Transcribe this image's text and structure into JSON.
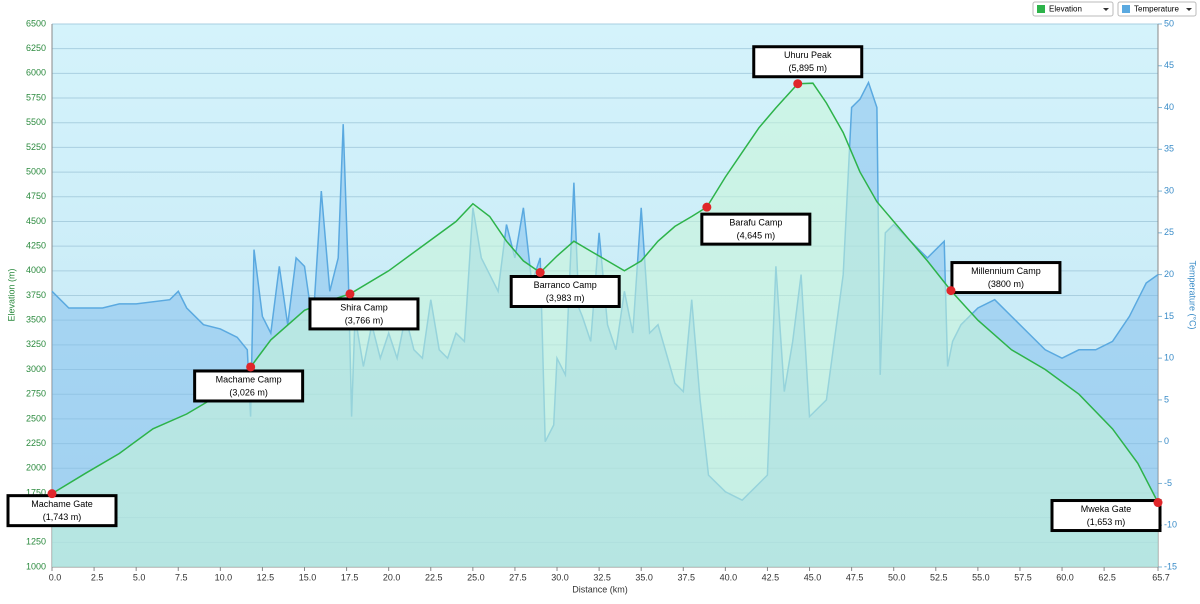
{
  "chart_data": {
    "type": "line",
    "xlabel": "Distance  (km)",
    "ylabel": "Elevation (m)",
    "y2label": "Temperature (°C)",
    "xlim": [
      0,
      65.7
    ],
    "ylim": [
      1000,
      6500
    ],
    "y2lim": [
      -15,
      50
    ],
    "grid": true,
    "legend": "top-right",
    "xticks": [
      {
        "value": 0,
        "label": "0.0"
      },
      2.5,
      {
        "value": 5,
        "label": "5.0"
      },
      7.5,
      {
        "value": 10,
        "label": "10.0"
      },
      12.5,
      {
        "value": 15,
        "label": "15.0"
      },
      17.5,
      {
        "value": 20,
        "label": "20.0"
      },
      22.5,
      {
        "value": 25,
        "label": "25.0"
      },
      27.5,
      {
        "value": 30,
        "label": "30.0"
      },
      32.5,
      {
        "value": 35,
        "label": "35.0"
      },
      37.5,
      {
        "value": 40,
        "label": "40.0"
      },
      42.5,
      {
        "value": 45,
        "label": "45.0"
      },
      47.5,
      {
        "value": 50,
        "label": "50.0"
      },
      52.5,
      {
        "value": 55,
        "label": "55.0"
      },
      57.5,
      {
        "value": 60,
        "label": "60.0"
      },
      62.5,
      65.7
    ],
    "yticks": [
      1000,
      1250,
      1500,
      1750,
      2000,
      2250,
      2500,
      2750,
      3000,
      3250,
      3500,
      3750,
      4000,
      4250,
      4500,
      4750,
      5000,
      5250,
      5500,
      5750,
      6000,
      6250,
      6500
    ],
    "y2ticks": [
      -15,
      -10,
      -5,
      0,
      5,
      10,
      15,
      20,
      25,
      30,
      35,
      40,
      45,
      50
    ],
    "series": [
      {
        "name": "Elevation",
        "color": "#2db34a",
        "x": [
          0,
          2,
          4,
          6,
          8,
          10,
          11.8,
          13,
          15,
          16.5,
          17.7,
          20,
          22,
          24,
          25,
          26,
          27,
          28,
          29,
          30,
          31,
          32,
          33,
          34,
          35,
          36,
          37,
          38,
          38.9,
          40,
          41,
          42,
          43,
          44.3,
          45.2,
          46,
          47,
          48,
          49,
          50,
          51,
          52,
          53.4,
          55,
          57,
          59,
          61,
          63,
          64.5,
          65.7
        ],
        "values": [
          1743,
          1950,
          2150,
          2400,
          2550,
          2750,
          3026,
          3300,
          3600,
          3700,
          3766,
          4000,
          4250,
          4500,
          4680,
          4550,
          4300,
          4100,
          3983,
          4150,
          4300,
          4200,
          4100,
          4000,
          4100,
          4300,
          4450,
          4550,
          4645,
          4950,
          5200,
          5450,
          5650,
          5895,
          5900,
          5700,
          5400,
          5000,
          4700,
          4500,
          4300,
          4100,
          3800,
          3500,
          3200,
          3000,
          2750,
          2400,
          2050,
          1653
        ]
      },
      {
        "name": "Temperature",
        "color": "#5aa9e0",
        "axis": "y2",
        "x": [
          0,
          1,
          3,
          4,
          5,
          7,
          7.5,
          8,
          9,
          10,
          11,
          11.6,
          11.8,
          12,
          12.5,
          13,
          13.5,
          14,
          14.5,
          15,
          15.5,
          16,
          16.5,
          17,
          17.3,
          17.6,
          17.8,
          18,
          18.5,
          19,
          19.5,
          20,
          20.5,
          21,
          21.5,
          22,
          22.5,
          23,
          23.5,
          24,
          24.5,
          25,
          25.5,
          26,
          26.5,
          27,
          27.5,
          28,
          28.5,
          29,
          29.3,
          29.8,
          30,
          30.5,
          31,
          31.3,
          31.5,
          32,
          32.5,
          33,
          33.5,
          34,
          34.5,
          35,
          35.5,
          36,
          37,
          37.5,
          38,
          38.5,
          39,
          40,
          41,
          42,
          42.5,
          43,
          43.5,
          44,
          44.5,
          45,
          46,
          47,
          47.5,
          48,
          48.5,
          49,
          49.2,
          49.5,
          50,
          51,
          52,
          53,
          53.2,
          53.5,
          54,
          55,
          56,
          57,
          58,
          59,
          60,
          61,
          62,
          63,
          64,
          65,
          65.7
        ],
        "values": [
          18,
          16,
          16,
          16.5,
          16.5,
          17,
          18,
          16,
          14,
          13.5,
          12.5,
          11,
          3,
          23,
          15,
          13,
          21,
          14,
          22,
          21,
          14,
          30,
          18,
          22,
          38,
          20,
          3,
          15,
          9,
          14,
          10,
          13,
          10,
          15,
          11,
          10,
          17,
          11,
          10,
          13,
          12,
          28,
          22,
          20,
          18,
          26,
          22,
          28,
          19,
          22,
          0,
          2,
          10,
          8,
          31,
          16,
          15,
          12,
          25,
          14,
          11,
          18,
          13,
          28,
          13,
          14,
          7,
          6,
          17,
          5,
          -4,
          -6,
          -7,
          -5,
          -4,
          21,
          6,
          12,
          20,
          3,
          5,
          20,
          40,
          41,
          43,
          40,
          8,
          25,
          26,
          24,
          22,
          24,
          9,
          12,
          14,
          16,
          17,
          15,
          13,
          11,
          10,
          11,
          11,
          12,
          15,
          19,
          20
        ]
      }
    ],
    "annotations": [
      {
        "name": "Machame Gate",
        "label": "(1,743 m)",
        "x": 0,
        "y": 1743
      },
      {
        "name": "Machame Camp",
        "label": "(3,026 m)",
        "x": 11.8,
        "y": 3026
      },
      {
        "name": "Shira Camp",
        "label": "(3,766 m)",
        "x": 17.7,
        "y": 3766
      },
      {
        "name": "Barranco Camp",
        "label": "(3,983 m)",
        "x": 29,
        "y": 3983
      },
      {
        "name": "Barafu Camp",
        "label": "(4,645 m)",
        "x": 38.9,
        "y": 4645
      },
      {
        "name": "Uhuru Peak",
        "label": "(5,895 m)",
        "x": 44.3,
        "y": 5895
      },
      {
        "name": "Millennium Camp",
        "label": "(3800 m)",
        "x": 53.4,
        "y": 3800
      },
      {
        "name": "Mweka Gate",
        "label": "(1,653 m)",
        "x": 65.7,
        "y": 1653
      }
    ]
  }
}
